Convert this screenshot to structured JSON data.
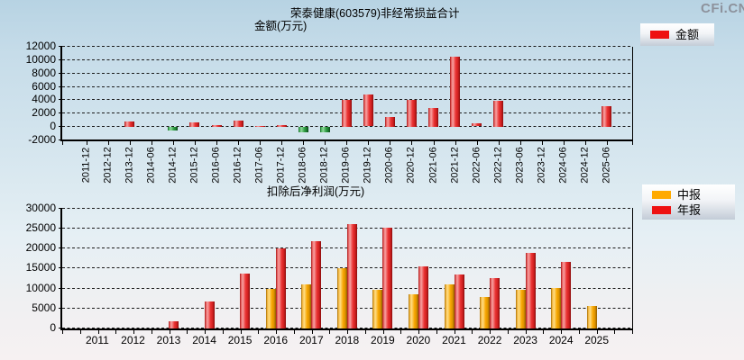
{
  "watermark": "CFi.CN",
  "colors": {
    "background_top": "#b7d3e3",
    "background_bottom": "#f6f1f2",
    "positive_bar_red": "#ee1111",
    "negative_bar_green": "#2f9e44",
    "interim_bar_orange": "#ffaa00",
    "axis_black": "#000000",
    "watermark_gray": "#8d929c"
  },
  "chart_data": [
    {
      "type": "bar",
      "title": "荣泰健康(603579)非经常损益合计",
      "subtitle": "金额(万元)",
      "legend": [
        {
          "label": "金额",
          "color": "#ee1111"
        }
      ],
      "legend_position": "top-right",
      "grid": true,
      "ylim": [
        -2000,
        12000
      ],
      "yticks": [
        12000,
        10000,
        8000,
        6000,
        4000,
        2000,
        0,
        -2000
      ],
      "categories": [
        "2011-12",
        "2012-12",
        "2013-12",
        "2014-06",
        "2014-12",
        "2015-12",
        "2016-06",
        "2016-12",
        "2017-06",
        "2017-12",
        "2018-06",
        "2018-12",
        "2019-06",
        "2019-12",
        "2020-06",
        "2020-12",
        "2021-06",
        "2021-12",
        "2022-06",
        "2022-12",
        "2023-06",
        "2023-12",
        "2024-06",
        "2024-12",
        "2025-06"
      ],
      "series": [
        {
          "name": "金额",
          "values": [
            null,
            null,
            750,
            null,
            -600,
            600,
            200,
            900,
            100,
            200,
            -900,
            -900,
            4000,
            4800,
            1400,
            4000,
            2800,
            10400,
            500,
            3800,
            null,
            null,
            null,
            null,
            3000
          ]
        }
      ]
    },
    {
      "type": "bar",
      "title": "扣除后净利润(万元)",
      "legend": [
        {
          "label": "中报",
          "color": "#ffaa00"
        },
        {
          "label": "年报",
          "color": "#ee1111"
        }
      ],
      "legend_position": "top-right",
      "grid": true,
      "ylim": [
        0,
        30000
      ],
      "yticks": [
        30000,
        25000,
        20000,
        15000,
        10000,
        5000,
        0
      ],
      "categories": [
        "2011",
        "2012",
        "2013",
        "2014",
        "2015",
        "2016",
        "2017",
        "2018",
        "2019",
        "2020",
        "2021",
        "2022",
        "2023",
        "2024",
        "2025"
      ],
      "series": [
        {
          "name": "中报",
          "values": [
            null,
            null,
            null,
            null,
            null,
            9900,
            11000,
            15000,
            9600,
            8500,
            11000,
            7800,
            9600,
            10000,
            5600
          ]
        },
        {
          "name": "年报",
          "values": [
            null,
            null,
            1700,
            6600,
            13700,
            20000,
            21600,
            26000,
            25000,
            15400,
            13400,
            12600,
            18900,
            16500,
            null
          ]
        }
      ]
    }
  ]
}
